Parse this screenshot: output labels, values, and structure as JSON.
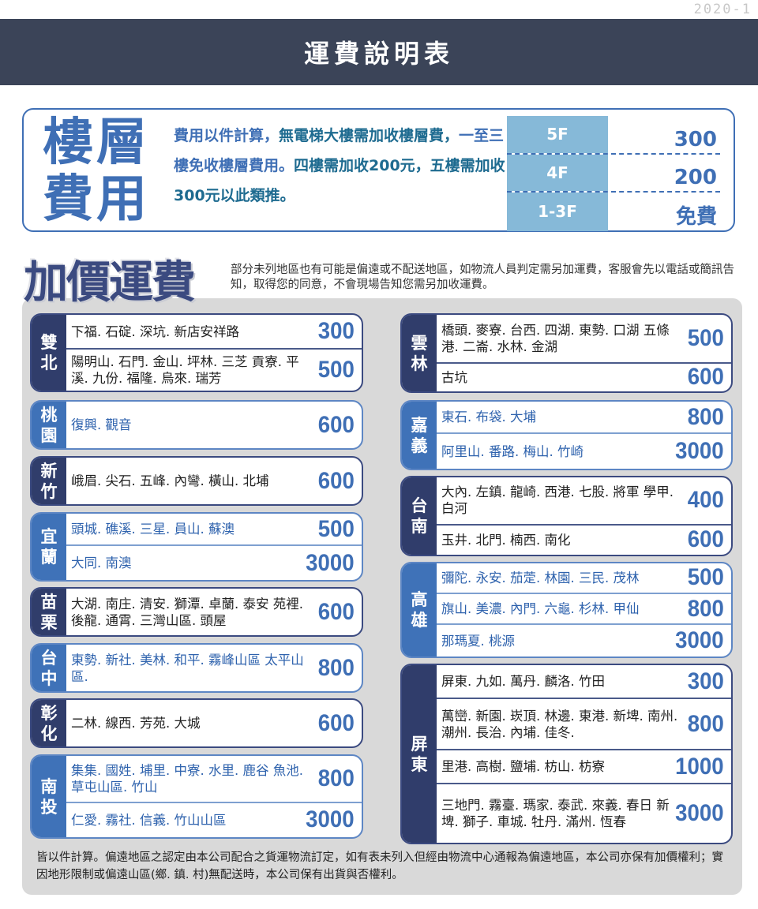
{
  "version": "2020-1",
  "title": "運費說明表",
  "floor": {
    "heading": "樓層費用",
    "desc_parts": [
      "費用以件計算，",
      "無電梯大樓需加收樓層費，",
      "一至三樓免收樓層費用。",
      "四樓需加收200元，五樓需加收300元以此類推。"
    ],
    "rows": [
      {
        "floor": "5F",
        "fee": "300"
      },
      {
        "floor": "4F",
        "fee": "200"
      },
      {
        "floor": "1-3F",
        "fee": "免費"
      }
    ]
  },
  "surcharge": {
    "heading": "加價運費",
    "desc": "部分未列地區也有可能是偏遠或不配送地區，如物流人員判定需另加運費，客服會先以電話或簡訊告知，取得您的同意，不會現場告知您需另加收運費。"
  },
  "regions": [
    {
      "name": "雙北",
      "style": "dark",
      "rows": [
        {
          "areas": "下福. 石碇. 深坑. 新店安祥路",
          "price": "300"
        },
        {
          "areas": "陽明山. 石門. 金山. 坪林. 三芝 貢寮. 平溪. 九份. 福隆. 烏來. 瑞芳",
          "price": "500"
        }
      ]
    },
    {
      "name": "桃園",
      "style": "light",
      "rows": [
        {
          "areas": "復興. 觀音",
          "price": "600"
        }
      ]
    },
    {
      "name": "新竹",
      "style": "dark",
      "rows": [
        {
          "areas": "峨眉. 尖石. 五峰. 內彎. 橫山. 北埔",
          "price": "600"
        }
      ]
    },
    {
      "name": "宜蘭",
      "style": "light",
      "rows": [
        {
          "areas": "頭城. 礁溪. 三星. 員山. 蘇澳",
          "price": "500"
        },
        {
          "areas": "大同. 南澳",
          "price": "3000"
        }
      ]
    },
    {
      "name": "苗栗",
      "style": "dark",
      "rows": [
        {
          "areas": "大湖. 南庄. 清安. 獅潭. 卓蘭. 泰安 苑裡. 後龍. 通霄. 三灣山區. 頭屋",
          "price": "600"
        }
      ]
    },
    {
      "name": "台中",
      "style": "light",
      "rows": [
        {
          "areas": "東勢. 新社. 美林. 和平. 霧峰山區 太平山區.",
          "price": "800"
        }
      ]
    },
    {
      "name": "彰化",
      "style": "dark",
      "rows": [
        {
          "areas": "二林. 線西. 芳苑. 大城",
          "price": "600"
        }
      ]
    },
    {
      "name": "南投",
      "style": "light",
      "rows": [
        {
          "areas": "集集. 國姓. 埔里. 中寮. 水里. 鹿谷 魚池. 草屯山區. 竹山",
          "price": "800"
        },
        {
          "areas": "仁愛. 霧社. 信義. 竹山山區",
          "price": "3000"
        }
      ]
    },
    {
      "name": "雲林",
      "style": "dark",
      "rows": [
        {
          "areas": "橋頭. 麥寮. 台西. 四湖. 東勢. 口湖 五條港. 二崙. 水林. 金湖",
          "price": "500"
        },
        {
          "areas": "古坑",
          "price": "600"
        }
      ]
    },
    {
      "name": "嘉義",
      "style": "light",
      "rows": [
        {
          "areas": "東石. 布袋. 大埔",
          "price": "800"
        },
        {
          "areas": "阿里山. 番路. 梅山. 竹崎",
          "price": "3000"
        }
      ]
    },
    {
      "name": "台南",
      "style": "dark",
      "rows": [
        {
          "areas": "大內. 左鎮. 龍崎. 西港. 七股. 將軍 學甲. 白河",
          "price": "400"
        },
        {
          "areas": "玉井. 北門. 楠西. 南化",
          "price": "600"
        }
      ]
    },
    {
      "name": "高雄",
      "style": "light",
      "rows": [
        {
          "areas": "彌陀. 永安. 茄萣. 林園. 三民. 茂林",
          "price": "500"
        },
        {
          "areas": "旗山. 美濃. 內門. 六龜. 杉林. 甲仙",
          "price": "800"
        },
        {
          "areas": "那瑪夏. 桃源",
          "price": "3000"
        }
      ]
    },
    {
      "name": "屏東",
      "style": "dark",
      "rows": [
        {
          "areas": "屏東. 九如. 萬丹. 麟洛. 竹田",
          "price": "300"
        },
        {
          "areas": "萬巒. 新園. 崁頂. 林邊. 東港. 新埤. 南州. 潮州. 長治. 內埔. 佳冬.",
          "price": "800"
        },
        {
          "areas": "里港. 高樹. 鹽埔. 枋山. 枋寮",
          "price": "1000"
        },
        {
          "areas": "三地門. 霧臺. 瑪家. 泰武. 來義. 春日 新埤. 獅子. 車城. 牡丹. 滿州. 恆春",
          "price": "3000"
        }
      ]
    }
  ],
  "footnote": "皆以件計算。偏遠地區之認定由本公司配合之貨運物流訂定，如有表未列入但經由物流中心通報為偏遠地區，本公司亦保有加價權利；實因地形限制或偏遠山區(鄉. 鎮. 村)無配送時，本公司保有出貨與否權利。",
  "colors": {
    "header": "#3b4458",
    "accent": "#3f6fb5",
    "dark_label": "#303d6b",
    "light_label": "#3f72b8",
    "panel": "#d9d9d9"
  }
}
